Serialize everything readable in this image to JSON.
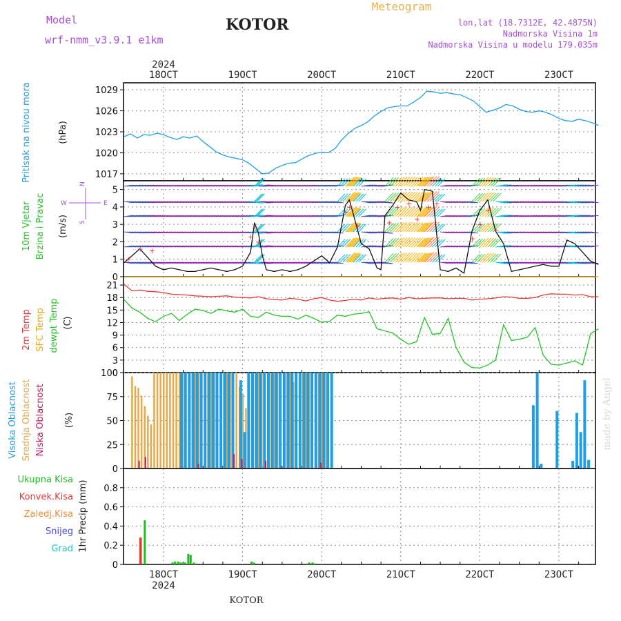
{
  "header": {
    "model_label": "Model",
    "model_name": "wrf-nmm_v3.9.1  e1km",
    "station": "KOTOR",
    "title": "Meteogram",
    "coords": "lon,lat (18.7312E, 42.4875N)",
    "elevation": "Nadmorska Visina 1m",
    "model_elevation": "Nadmorska Visina u modelu 179.035m",
    "footer_station": "KOTOR",
    "watermark": "made by Angel"
  },
  "colors": {
    "pressure": "#1e9ee6",
    "temp2m": "#e53935",
    "sfctemp": "#e6a817",
    "dewpt": "#22c422",
    "high_cloud": "#1e9ee6",
    "mid_cloud": "#e6a84a",
    "low_cloud": "#c2185b",
    "total_precip": "#22bb22",
    "conv_precip": "#e53935",
    "frozen_precip": "#f58b2c",
    "snow": "#4a4ae0",
    "hail": "#22c4c4",
    "header_purple": "#a64dd9",
    "header_orange": "#e6b34a",
    "grid": "#888888"
  },
  "x_axis": {
    "year": "2024",
    "ticks": [
      "18OCT",
      "19OCT",
      "20OCT",
      "21OCT",
      "22OCT",
      "23OCT"
    ]
  },
  "chart_data": [
    {
      "type": "line",
      "name": "pressure",
      "ylabel": "Pritisak na nivou mora",
      "unit": "(hPa)",
      "ylim": [
        1016,
        1030
      ],
      "yticks": [
        "1017",
        "1020",
        "1023",
        "1026",
        "1029"
      ],
      "x_days": [
        17.5,
        17.58,
        17.67,
        17.75,
        17.83,
        17.92,
        18.0,
        18.08,
        18.17,
        18.25,
        18.33,
        18.42,
        18.5,
        18.58,
        18.67,
        18.75,
        18.83,
        18.92,
        19.0,
        19.08,
        19.17,
        19.25,
        19.33,
        19.42,
        19.5,
        19.58,
        19.67,
        19.75,
        19.83,
        19.92,
        20.0,
        20.08,
        20.17,
        20.25,
        20.33,
        20.42,
        20.5,
        20.58,
        20.67,
        20.75,
        20.83,
        20.92,
        21.0,
        21.08,
        21.17,
        21.25,
        21.33,
        21.42,
        21.5,
        21.58,
        21.67,
        21.75,
        21.83,
        21.92,
        22.0,
        22.08,
        22.17,
        22.25,
        22.33,
        22.42,
        22.5,
        22.58,
        22.67,
        22.75,
        22.83,
        22.92,
        23.0,
        23.08,
        23.17,
        23.25,
        23.33,
        23.42,
        23.5
      ],
      "values": [
        1022.3,
        1022.7,
        1022.1,
        1022.6,
        1022.5,
        1022.8,
        1022.6,
        1022.2,
        1021.9,
        1022.3,
        1022.1,
        1022.4,
        1021.6,
        1020.9,
        1020.1,
        1019.7,
        1019.4,
        1019.2,
        1019.0,
        1018.5,
        1017.7,
        1017.0,
        1017.1,
        1017.8,
        1018.2,
        1018.5,
        1018.6,
        1019.1,
        1019.6,
        1019.9,
        1020.1,
        1020.0,
        1020.6,
        1021.8,
        1022.7,
        1023.5,
        1023.9,
        1024.4,
        1025.3,
        1025.9,
        1026.4,
        1026.6,
        1026.7,
        1026.7,
        1027.3,
        1027.9,
        1028.8,
        1028.7,
        1028.5,
        1028.6,
        1028.4,
        1028.3,
        1027.9,
        1027.4,
        1026.6,
        1025.8,
        1026.1,
        1026.4,
        1026.9,
        1026.7,
        1026.2,
        1025.9,
        1025.8,
        1026.0,
        1025.8,
        1025.4,
        1024.9,
        1024.6,
        1024.5,
        1024.8,
        1024.6,
        1024.3,
        1023.9
      ]
    },
    {
      "type": "line",
      "name": "wind",
      "ylabel": "10m Vjetar Brzina i Pravac",
      "unit": "(m/s)",
      "compass": {
        "n": "N",
        "s": "S",
        "e": "E",
        "w": "W"
      },
      "ylim": [
        0,
        5.5
      ],
      "yticks": [
        "0",
        "1",
        "2",
        "3",
        "4",
        "5"
      ],
      "x_days": [
        17.5,
        17.6,
        17.7,
        17.8,
        17.9,
        18.0,
        18.1,
        18.2,
        18.3,
        18.4,
        18.5,
        18.6,
        18.7,
        18.8,
        18.9,
        19.0,
        19.1,
        19.15,
        19.2,
        19.25,
        19.3,
        19.4,
        19.5,
        19.6,
        19.7,
        19.8,
        19.9,
        20.0,
        20.1,
        20.2,
        20.3,
        20.35,
        20.4,
        20.5,
        20.6,
        20.7,
        20.75,
        20.8,
        20.9,
        21.0,
        21.1,
        21.2,
        21.25,
        21.3,
        21.4,
        21.5,
        21.6,
        21.7,
        21.8,
        21.9,
        22.0,
        22.1,
        22.2,
        22.3,
        22.4,
        22.5,
        22.6,
        22.7,
        22.8,
        22.9,
        23.0,
        23.1,
        23.2,
        23.3,
        23.4,
        23.5
      ],
      "values": [
        0.8,
        1.2,
        1.6,
        1.1,
        0.6,
        0.4,
        0.5,
        0.4,
        0.3,
        0.3,
        0.4,
        0.5,
        0.4,
        0.3,
        0.4,
        0.6,
        1.4,
        3.1,
        2.5,
        1.2,
        0.4,
        0.3,
        0.4,
        0.3,
        0.4,
        0.6,
        0.9,
        1.2,
        0.8,
        1.7,
        4.1,
        4.4,
        3.6,
        1.9,
        1.6,
        0.5,
        0.4,
        3.5,
        4.1,
        4.8,
        4.4,
        4.3,
        3.8,
        5.0,
        4.9,
        0.4,
        0.3,
        0.5,
        0.2,
        2.6,
        3.8,
        4.4,
        2.6,
        1.9,
        0.3,
        0.4,
        0.5,
        0.6,
        0.7,
        0.6,
        0.6,
        2.1,
        1.9,
        1.4,
        0.9,
        0.7
      ],
      "gust_x_days": [
        17.55,
        17.7,
        17.85,
        19.1,
        19.15,
        19.2,
        20.3,
        20.35,
        20.45,
        20.85,
        20.95,
        21.1,
        21.2,
        21.35,
        21.45,
        21.9,
        22.0,
        22.1,
        22.2
      ],
      "gust_values": [
        1.0,
        1.6,
        1.5,
        2.3,
        2.8,
        2.0,
        3.7,
        4.0,
        2.9,
        3.1,
        4.0,
        4.2,
        3.3,
        4.0,
        4.2,
        2.2,
        3.0,
        3.8,
        2.7
      ]
    },
    {
      "type": "line",
      "name": "temperature",
      "ylabel_2m": "2m Temp",
      "ylabel_sfc": "SFC Temp",
      "ylabel_dew": "dewpt Temp",
      "unit": "(C)",
      "ylim": [
        0,
        23
      ],
      "yticks": [
        "0",
        "3",
        "6",
        "9",
        "12",
        "15",
        "18",
        "21"
      ],
      "x_days": [
        17.5,
        17.6,
        17.7,
        17.8,
        17.9,
        18.0,
        18.1,
        18.2,
        18.3,
        18.4,
        18.5,
        18.6,
        18.7,
        18.8,
        18.9,
        19.0,
        19.1,
        19.2,
        19.3,
        19.4,
        19.5,
        19.6,
        19.7,
        19.8,
        19.9,
        20.0,
        20.1,
        20.2,
        20.3,
        20.4,
        20.5,
        20.6,
        20.7,
        20.8,
        20.9,
        21.0,
        21.1,
        21.2,
        21.3,
        21.4,
        21.5,
        21.6,
        21.7,
        21.8,
        21.9,
        22.0,
        22.1,
        22.2,
        22.3,
        22.4,
        22.5,
        22.6,
        22.7,
        22.8,
        22.9,
        23.0,
        23.1,
        23.2,
        23.3,
        23.4,
        23.5
      ],
      "temp2m": [
        21.2,
        19.6,
        19.8,
        19.5,
        19.4,
        19.2,
        18.8,
        18.7,
        18.6,
        18.4,
        18.3,
        18.2,
        18.3,
        18.4,
        18.1,
        18.0,
        17.9,
        18.2,
        17.7,
        17.5,
        17.4,
        17.8,
        17.6,
        17.2,
        17.7,
        18.0,
        17.4,
        17.1,
        17.3,
        17.6,
        17.4,
        17.9,
        17.6,
        17.8,
        17.9,
        17.6,
        18.0,
        17.7,
        17.8,
        17.9,
        17.9,
        17.7,
        17.8,
        17.8,
        17.4,
        17.6,
        17.7,
        17.9,
        18.2,
        18.1,
        17.8,
        17.8,
        18.0,
        18.6,
        18.9,
        18.8,
        18.8,
        18.6,
        18.7,
        18.2,
        18.2
      ],
      "sfctemp": [
        23,
        23,
        23,
        23,
        23,
        23,
        23,
        23,
        23,
        23,
        23,
        23,
        23,
        23,
        23,
        23,
        23,
        23,
        23,
        23,
        23,
        23,
        23,
        23,
        23,
        23,
        23,
        23,
        23,
        23,
        23,
        23,
        23,
        23,
        23,
        23,
        23,
        23,
        23,
        23,
        23,
        23,
        23,
        23,
        23,
        23,
        23,
        23,
        23,
        23,
        23,
        23,
        23,
        23,
        23,
        23,
        23,
        23,
        23,
        23,
        23
      ],
      "dewpt": [
        17.5,
        15.5,
        14.5,
        13.0,
        12.2,
        13.5,
        14.2,
        12.5,
        14.0,
        15.2,
        14.9,
        14.2,
        15.2,
        14.8,
        14.5,
        15.2,
        13.5,
        13.2,
        14.5,
        13.8,
        13.5,
        13.5,
        12.8,
        13.8,
        13.0,
        12.1,
        12.3,
        13.8,
        13.5,
        14.0,
        14.2,
        14.6,
        10.5,
        10.0,
        9.5,
        8.0,
        6.8,
        7.4,
        13.2,
        9.2,
        9.4,
        13.0,
        6.0,
        2.5,
        1.2,
        1.1,
        1.8,
        3.0,
        11.5,
        7.7,
        8.0,
        8.5,
        10.8,
        4.2,
        2.0,
        1.8,
        2.3,
        2.8,
        1.8,
        9.3,
        10.5
      ]
    },
    {
      "type": "bar",
      "name": "clouds",
      "ylabel_high": "Visoka Oblacnost",
      "ylabel_mid": "Srednja Oblacnost",
      "ylabel_low": "Niska Oblacnost",
      "unit": "(%)",
      "ylim": [
        0,
        100
      ],
      "yticks": [
        "0",
        "25",
        "50",
        "75",
        "100"
      ],
      "mid": {
        "x_days": [
          17.6,
          17.64,
          17.68,
          17.72,
          17.76,
          17.8,
          17.84,
          17.88,
          17.92,
          17.96,
          18.0,
          18.04,
          18.08,
          18.12,
          18.16,
          18.2,
          18.24,
          18.28,
          18.32,
          18.36,
          18.4,
          18.44,
          18.48,
          18.52,
          18.56,
          18.6,
          18.64,
          18.68,
          18.72,
          18.76,
          18.8,
          18.84,
          18.88,
          18.92,
          18.96,
          19.0,
          19.04,
          19.08,
          19.12,
          19.16,
          19.2,
          19.24,
          19.28,
          19.32,
          19.36,
          19.4,
          19.44,
          19.48,
          19.52,
          19.56,
          19.6,
          19.64,
          19.68,
          19.72,
          19.76,
          19.8,
          19.84,
          19.88,
          19.92,
          19.96,
          20.0,
          20.04,
          20.08
        ],
        "values": [
          96,
          86,
          84,
          76,
          65,
          55,
          46,
          100,
          100,
          100,
          100,
          100,
          100,
          100,
          100,
          100,
          100,
          100,
          100,
          100,
          100,
          100,
          100,
          100,
          100,
          100,
          100,
          100,
          100,
          100,
          100,
          100,
          100,
          100,
          85,
          78,
          63,
          100,
          100,
          100,
          100,
          100,
          100,
          100,
          100,
          100,
          100,
          100,
          100,
          100,
          100,
          90,
          100,
          100,
          100,
          100,
          100,
          100,
          100,
          100,
          100,
          100,
          100
        ]
      },
      "high": {
        "x_days": [
          18.2,
          18.25,
          18.3,
          18.35,
          18.4,
          18.45,
          18.5,
          18.55,
          18.6,
          18.65,
          18.7,
          18.75,
          18.8,
          18.85,
          18.95,
          19.0,
          19.05,
          19.1,
          19.15,
          19.2,
          19.25,
          19.3,
          19.35,
          19.4,
          19.45,
          19.5,
          19.55,
          19.6,
          19.65,
          19.7,
          19.75,
          19.8,
          19.85,
          19.9,
          19.95,
          20.0,
          20.05,
          20.1,
          22.65,
          22.7,
          22.75,
          22.95,
          23.15,
          23.2,
          23.25,
          23.3,
          23.35
        ],
        "values": [
          100,
          100,
          100,
          100,
          100,
          100,
          100,
          100,
          100,
          100,
          100,
          100,
          100,
          100,
          92,
          38,
          100,
          100,
          100,
          100,
          100,
          100,
          100,
          100,
          100,
          100,
          100,
          100,
          100,
          100,
          100,
          100,
          100,
          100,
          100,
          100,
          100,
          100,
          66,
          100,
          5,
          60,
          8,
          58,
          38,
          92,
          9
        ]
      },
      "low": {
        "x_days": [
          17.7,
          17.78,
          18.45,
          18.9,
          19.0,
          19.3,
          20.0
        ],
        "values": [
          8,
          12,
          5,
          15,
          10,
          8,
          6
        ]
      }
    },
    {
      "type": "bar",
      "name": "precipitation",
      "ylabel": "1hr Precip (mm)",
      "legend": [
        "Ukupna Kisa",
        "Konvek.Kisa",
        "Zaledj.Kisa",
        "Snijeg",
        "Grad"
      ],
      "ylim": [
        0,
        1.0
      ],
      "yticks": [
        "0",
        "0.2",
        "0.4",
        "0.6",
        "0.8"
      ],
      "total": {
        "x_days": [
          17.7,
          17.75,
          18.1,
          18.13,
          18.17,
          18.2,
          18.23,
          18.26,
          18.3,
          18.33,
          18.37,
          18.4,
          19.1,
          19.13,
          19.8,
          19.83,
          19.87,
          19.9
        ],
        "values": [
          0.28,
          0.46,
          0.02,
          0.03,
          0.03,
          0.02,
          0.02,
          0.02,
          0.11,
          0.1,
          0.02,
          0.01,
          0.03,
          0.02,
          0.01,
          0.02,
          0.02,
          0.01
        ]
      },
      "conv": {
        "x_days": [
          17.72
        ],
        "values": [
          0.28
        ]
      }
    }
  ]
}
